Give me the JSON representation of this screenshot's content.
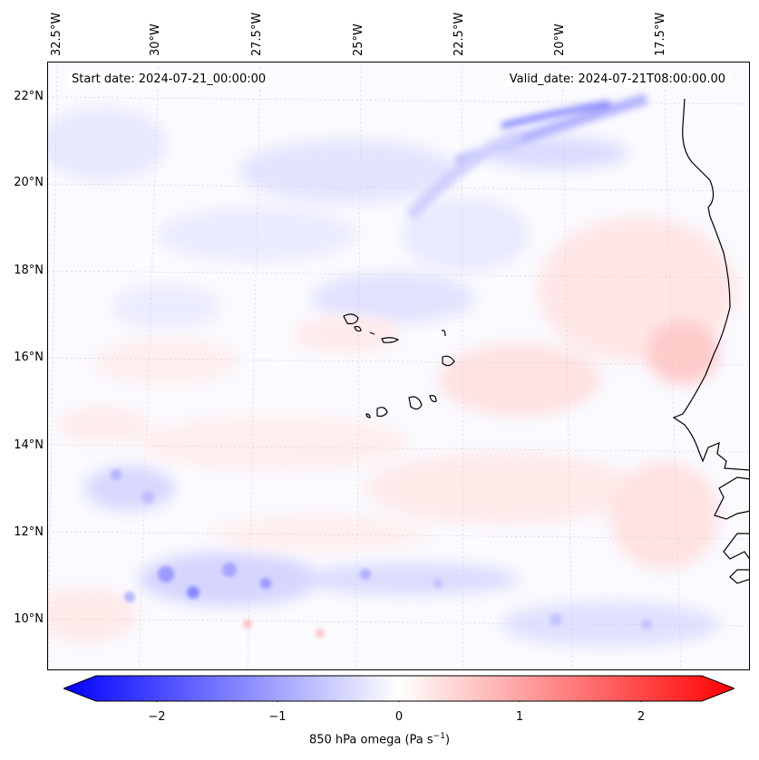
{
  "map": {
    "start_date": "Start date: 2024-07-21_00:00:00",
    "valid_date": "Valid_date: 2024-07-21T08:00:00.00",
    "longitude_labels": [
      "32.5°W",
      "30°W",
      "27.5°W",
      "25°W",
      "22.5°W",
      "20°W",
      "17.5°W"
    ],
    "latitude_labels": [
      "22°N",
      "20°N",
      "18°N",
      "16°N",
      "14°N",
      "12°N",
      "10°N"
    ],
    "features": [
      "Cabo Verde islands",
      "West African coastline"
    ]
  },
  "colorbar": {
    "ticks": [
      "−2",
      "−1",
      "0",
      "1",
      "2"
    ],
    "label": "850 hPa omega (Pa s",
    "label_exp": "−1",
    "label_end": ")",
    "colors": {
      "negative": "#0000ff",
      "zero": "#ffffff",
      "positive": "#ff0000"
    }
  }
}
